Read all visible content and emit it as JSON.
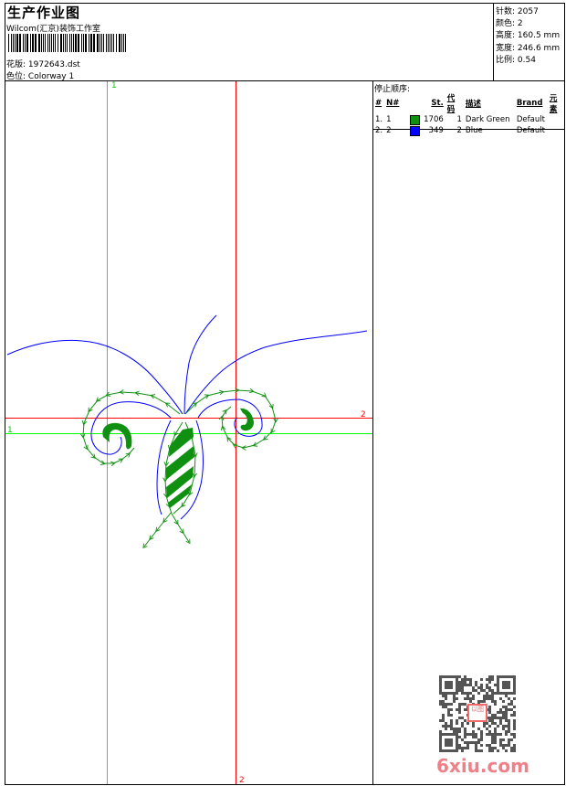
{
  "header": {
    "title": "生产作业图",
    "company": "Wilcom(汇京)装饰工作室",
    "design_label": "花版:",
    "design_file": "1972643.dst",
    "colorway_label": "色位:",
    "colorway": "Colorway 1"
  },
  "info": [
    {
      "label": "针数:",
      "value": "2057"
    },
    {
      "label": "颜色:",
      "value": "2"
    },
    {
      "label": "高度:",
      "value": "160.5 mm"
    },
    {
      "label": "宽度:",
      "value": "246.6 mm"
    },
    {
      "label": "比例:",
      "value": "0.54"
    }
  ],
  "stop_sequence": {
    "title": "停止顺序:",
    "headers": [
      "#",
      "N#",
      "",
      "St.",
      "代码",
      "描述",
      "Brand",
      "元素"
    ],
    "rows": [
      {
        "idx": "1.",
        "n": "1",
        "color": "#109010",
        "stitches": "1706",
        "code": "1",
        "desc": "Dark Green",
        "brand": "Default"
      },
      {
        "idx": "2.",
        "n": "2",
        "color": "#0000ff",
        "stitches": "349",
        "code": "2",
        "desc": "Blue",
        "brand": "Default"
      }
    ]
  },
  "guides": {
    "green_label_top": "1",
    "green_label_left": "1",
    "red_label_right": "2",
    "red_label_bottom": "2",
    "green_color": "#00ff00",
    "red_color": "#ff0000"
  },
  "colors": {
    "thread1": "#109010",
    "thread2": "#0000ff"
  },
  "stamp": {
    "text": "以图版"
  },
  "watermark": "6xiu.com"
}
